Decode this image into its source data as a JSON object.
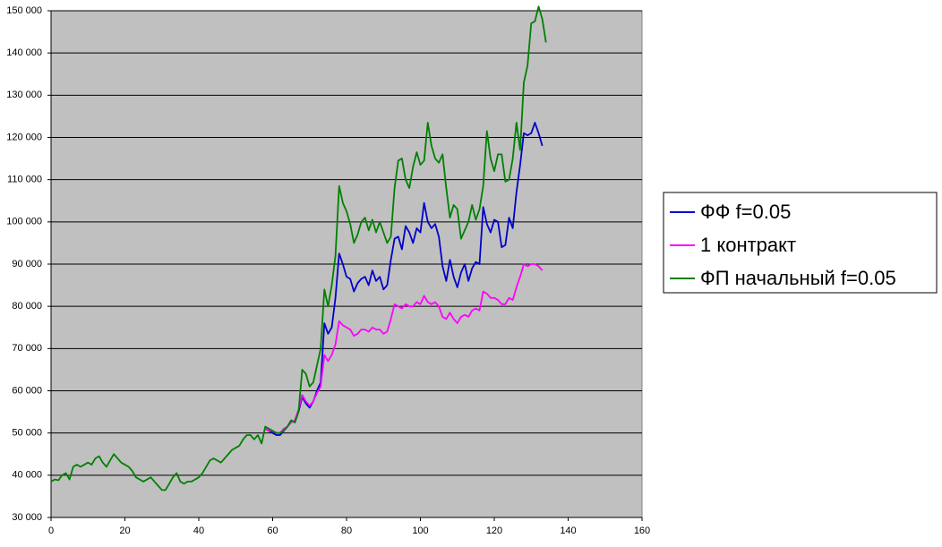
{
  "chart_data": {
    "type": "line",
    "x": [
      0,
      1,
      2,
      3,
      4,
      5,
      6,
      7,
      8,
      9,
      10,
      11,
      12,
      13,
      14,
      15,
      16,
      17,
      18,
      19,
      20,
      21,
      22,
      23,
      24,
      25,
      26,
      27,
      28,
      29,
      30,
      31,
      32,
      33,
      34,
      35,
      36,
      37,
      38,
      39,
      40,
      41,
      42,
      43,
      44,
      45,
      46,
      47,
      48,
      49,
      50,
      51,
      52,
      53,
      54,
      55,
      56,
      57,
      58,
      59,
      60,
      61,
      62,
      63,
      64,
      65,
      66,
      67,
      68,
      69,
      70,
      71,
      72,
      73,
      74,
      75,
      76,
      77,
      78,
      79,
      80,
      81,
      82,
      83,
      84,
      85,
      86,
      87,
      88,
      89,
      90,
      91,
      92,
      93,
      94,
      95,
      96,
      97,
      98,
      99,
      100,
      101,
      102,
      103,
      104,
      105,
      106,
      107,
      108,
      109,
      110,
      111,
      112,
      113,
      114,
      115,
      116,
      117,
      118,
      119,
      120,
      121,
      122,
      123,
      124,
      125,
      126,
      127,
      128,
      129,
      130,
      131,
      132,
      133,
      134
    ],
    "series": [
      {
        "name": "ФФ f=0.05",
        "color": "#0000cc",
        "values": [
          null,
          null,
          null,
          null,
          null,
          null,
          null,
          null,
          null,
          null,
          null,
          null,
          null,
          null,
          null,
          null,
          null,
          null,
          null,
          null,
          null,
          null,
          null,
          null,
          null,
          null,
          null,
          null,
          null,
          null,
          null,
          null,
          null,
          null,
          null,
          null,
          null,
          null,
          null,
          null,
          null,
          null,
          null,
          null,
          null,
          null,
          null,
          null,
          null,
          null,
          null,
          null,
          null,
          null,
          null,
          null,
          null,
          null,
          51000,
          50500,
          50000,
          49500,
          49500,
          50500,
          51500,
          53000,
          52500,
          55000,
          58500,
          57000,
          56000,
          57500,
          60000,
          62000,
          76000,
          73500,
          75000,
          82000,
          92500,
          90000,
          87000,
          86500,
          83500,
          85500,
          86500,
          87000,
          85000,
          88500,
          86000,
          87000,
          84000,
          85000,
          91000,
          96000,
          96500,
          93500,
          99000,
          97500,
          95000,
          98500,
          97500,
          104500,
          100000,
          98500,
          99500,
          96500,
          89500,
          86000,
          91000,
          87000,
          84500,
          88000,
          90000,
          86000,
          89000,
          90500,
          90000,
          103500,
          99500,
          97500,
          100500,
          100000,
          94000,
          94500,
          101000,
          98500,
          107000,
          113500,
          121000,
          120500,
          121000,
          123500,
          121000,
          118000,
          null
        ]
      },
      {
        "name": "1 контракт",
        "color": "#ff00ff",
        "values": [
          null,
          null,
          null,
          null,
          null,
          null,
          null,
          null,
          null,
          null,
          null,
          null,
          null,
          null,
          null,
          null,
          null,
          null,
          null,
          null,
          null,
          null,
          null,
          null,
          null,
          null,
          null,
          null,
          null,
          null,
          null,
          null,
          null,
          null,
          null,
          null,
          null,
          null,
          null,
          null,
          null,
          null,
          null,
          null,
          null,
          null,
          null,
          null,
          null,
          null,
          null,
          null,
          null,
          null,
          null,
          null,
          null,
          null,
          51000,
          50500,
          50500,
          50000,
          50000,
          51000,
          51500,
          52500,
          53000,
          55500,
          59000,
          57500,
          56500,
          57500,
          59500,
          61000,
          68500,
          67000,
          68500,
          71000,
          76500,
          75500,
          75000,
          74500,
          73000,
          73500,
          74500,
          74500,
          74000,
          75000,
          74500,
          74500,
          73500,
          74000,
          77000,
          80500,
          80000,
          79500,
          80500,
          80000,
          80000,
          81000,
          80500,
          82500,
          81000,
          80500,
          81000,
          80000,
          77500,
          77000,
          78500,
          77000,
          76000,
          77500,
          78000,
          77500,
          79000,
          79500,
          79000,
          83500,
          83000,
          82000,
          82000,
          81500,
          80500,
          80500,
          82000,
          81500,
          84500,
          87000,
          90000,
          89500,
          90000,
          90000,
          89500,
          88500,
          null
        ]
      },
      {
        "name": "ФП начальный f=0.05",
        "color": "#008000",
        "values": [
          38500,
          39000,
          38800,
          40000,
          40500,
          39000,
          42000,
          42500,
          42000,
          42500,
          43000,
          42500,
          44000,
          44500,
          43000,
          42000,
          43500,
          45000,
          44000,
          43000,
          42500,
          42000,
          41000,
          39500,
          39000,
          38500,
          39000,
          39500,
          38500,
          37500,
          36500,
          36500,
          38000,
          39500,
          40500,
          38500,
          38000,
          38500,
          38500,
          39000,
          39500,
          40500,
          42000,
          43500,
          44000,
          43500,
          43000,
          44000,
          45000,
          46000,
          46500,
          47000,
          48500,
          49500,
          49500,
          48500,
          49500,
          47500,
          51500,
          51000,
          50500,
          50000,
          50000,
          50500,
          51500,
          53000,
          52500,
          55000,
          65000,
          64000,
          61000,
          62000,
          66000,
          70000,
          84000,
          80000,
          85000,
          92000,
          108500,
          104500,
          102500,
          99500,
          95000,
          97000,
          100000,
          101000,
          98000,
          100500,
          97500,
          100000,
          97500,
          95000,
          96500,
          108000,
          114500,
          115000,
          110000,
          108000,
          113000,
          116500,
          113500,
          114500,
          123500,
          118000,
          115000,
          114000,
          116000,
          108000,
          101000,
          104000,
          103000,
          96000,
          98000,
          100000,
          104000,
          100500,
          103000,
          108500,
          121500,
          115000,
          112000,
          116000,
          116000,
          109500,
          110000,
          115000,
          123500,
          117000,
          133000,
          137000,
          147000,
          147500,
          151000,
          148000,
          142500
        ]
      }
    ],
    "xlim": [
      0,
      160
    ],
    "xticks": [
      0,
      20,
      40,
      60,
      80,
      100,
      120,
      140,
      160
    ],
    "ylim": [
      30000,
      150000
    ],
    "yticks": [
      {
        "value": 30000,
        "label": "30 000"
      },
      {
        "value": 40000,
        "label": "40 000"
      },
      {
        "value": 50000,
        "label": "50 000"
      },
      {
        "value": 60000,
        "label": "60 000"
      },
      {
        "value": 70000,
        "label": "70 000"
      },
      {
        "value": 80000,
        "label": "80 000"
      },
      {
        "value": 90000,
        "label": "90 000"
      },
      {
        "value": 100000,
        "label": "100 000"
      },
      {
        "value": 110000,
        "label": "110 000"
      },
      {
        "value": 120000,
        "label": "120 000"
      },
      {
        "value": 130000,
        "label": "130 000"
      },
      {
        "value": 140000,
        "label": "140 000"
      },
      {
        "value": 150000,
        "label": "150 000"
      }
    ],
    "grid": true,
    "legend": "right"
  }
}
